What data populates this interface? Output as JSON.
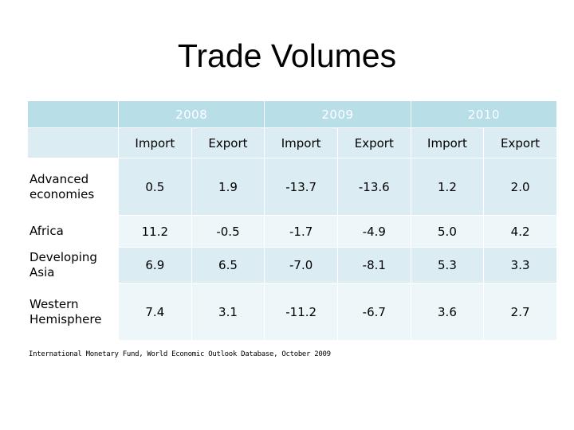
{
  "title": "Trade Volumes",
  "table": {
    "years": [
      "2008",
      "2009",
      "2010"
    ],
    "subheaders": [
      "Import",
      "Export",
      "Import",
      "Export",
      "Import",
      "Export"
    ],
    "rows": [
      {
        "region": "Advanced economies",
        "values": [
          "0.5",
          "1.9",
          "-13.7",
          "-13.6",
          "1.2",
          "2.0"
        ]
      },
      {
        "region": "Africa",
        "values": [
          "11.2",
          "-0.5",
          "-1.7",
          "-4.9",
          "5.0",
          "4.2"
        ]
      },
      {
        "region": "Developing Asia",
        "values": [
          "6.9",
          "6.5",
          "-7.0",
          "-8.1",
          "5.3",
          "3.3"
        ]
      },
      {
        "region": "Western Hemisphere",
        "values": [
          "7.4",
          "3.1",
          "-11.2",
          "-6.7",
          "3.6",
          "2.7"
        ]
      }
    ]
  },
  "source": "International Monetary Fund, World Economic Outlook Database, October 2009",
  "colors": {
    "year_header_bg": "#b8dee8",
    "subheader_bg": "#dbedf2",
    "row_odd_bg": "#dbedf2",
    "row_even_bg": "#edf6f8"
  }
}
